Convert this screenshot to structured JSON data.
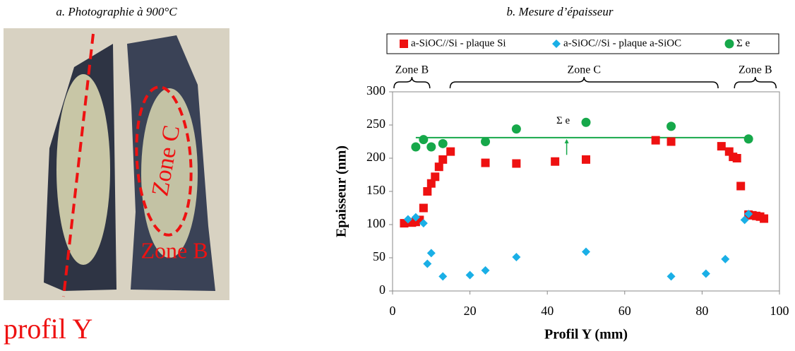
{
  "photo": {
    "caption": "a. Photographie à 900°C",
    "zone_c": "Zone C",
    "zone_b": "Zone B",
    "profile": "profil Y"
  },
  "chart_data": {
    "type": "scatter",
    "title": "b. Mesure d’épaisseur",
    "x_label": "Profil Y (mm)",
    "y_label": "Epaisseur (nm)",
    "xlim": [
      0,
      100
    ],
    "xticks": [
      0,
      20,
      40,
      60,
      80,
      100
    ],
    "ylim": [
      0,
      300
    ],
    "yticks": [
      0,
      50,
      100,
      150,
      200,
      250,
      300
    ],
    "series": [
      {
        "name": "a-SiOC//Si - plaque Si",
        "color": "#ee1111",
        "marker": "square",
        "x": [
          3,
          5,
          6,
          7,
          8,
          9,
          10,
          11,
          12,
          13,
          15,
          24,
          32,
          42,
          50,
          68,
          72,
          85,
          87,
          88,
          89,
          90,
          92,
          93,
          94,
          95,
          96
        ],
        "values": [
          102,
          103,
          104,
          107,
          125,
          150,
          162,
          172,
          187,
          198,
          210,
          193,
          192,
          195,
          198,
          227,
          225,
          218,
          210,
          202,
          200,
          158,
          115,
          114,
          113,
          112,
          109
        ]
      },
      {
        "name": "a-SiOC//Si - plaque a-SiOC",
        "color": "#1aafe6",
        "marker": "diamond",
        "x": [
          4,
          6,
          8,
          9,
          10,
          13,
          20,
          24,
          32,
          50,
          72,
          81,
          86,
          91,
          92
        ],
        "values": [
          108,
          111,
          102,
          41,
          57,
          22,
          24,
          31,
          51,
          59,
          22,
          26,
          48,
          107,
          116
        ]
      },
      {
        "name": "Σ e",
        "color": "#16a84a",
        "marker": "circle",
        "x": [
          6,
          8,
          10,
          13,
          24,
          32,
          50,
          72,
          92
        ],
        "values": [
          217,
          228,
          217,
          222,
          225,
          244,
          254,
          248,
          229
        ]
      }
    ],
    "sum_line": {
      "label": "Σ e",
      "x": [
        6,
        92
      ],
      "values": [
        231,
        231
      ],
      "color": "#16a84a"
    },
    "zones": [
      {
        "label": "Zone B",
        "range": [
          0,
          10
        ]
      },
      {
        "label": "Zone C",
        "range": [
          14.5,
          84.5
        ]
      },
      {
        "label": "Zone B",
        "range": [
          88,
          99.5
        ]
      }
    ]
  }
}
